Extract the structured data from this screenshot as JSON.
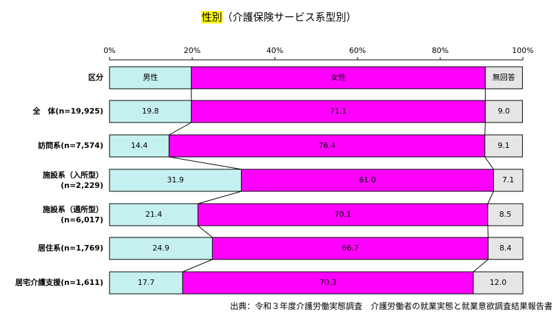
{
  "title_main": "性別",
  "title_sub": "（介護保険サービス系型別）",
  "source": "出典：令和３年度介護労働実態調査　介護労働者の就業実態と就業意欲調査結果報告書",
  "chart_data": {
    "type": "bar",
    "orientation": "horizontal",
    "stacked": true,
    "xlim": [
      0,
      100
    ],
    "x_ticks": [
      "0%",
      "20%",
      "40%",
      "60%",
      "80%",
      "100%"
    ],
    "grid": false,
    "legend_row": {
      "label": "区分",
      "entries": [
        "男性",
        "女性",
        "無回答"
      ]
    },
    "categories": [
      [
        "全　体(n=19,925)"
      ],
      [
        "訪問系(n=7,574)"
      ],
      [
        "施設系（入所型）",
        "(n=2,229)"
      ],
      [
        "施設系（通所型）",
        "(n=6,017)"
      ],
      [
        "居住系(n=1,769)"
      ],
      [
        "居宅介護支援(n=1,611)"
      ]
    ],
    "series": [
      {
        "name": "男性",
        "color": "#c5f0f0",
        "values": [
          19.8,
          14.4,
          31.9,
          21.4,
          24.9,
          17.7
        ]
      },
      {
        "name": "女性",
        "color": "#ff00ff",
        "values": [
          71.1,
          76.4,
          61.0,
          70.1,
          66.7,
          70.3
        ]
      },
      {
        "name": "無回答",
        "color": "#e6e6e6",
        "values": [
          9.0,
          9.1,
          7.1,
          8.5,
          8.4,
          12.0
        ]
      }
    ],
    "data_labels": [
      [
        "19.8",
        "71.1",
        "9.0"
      ],
      [
        "14.4",
        "76.4",
        "9.1"
      ],
      [
        "31.9",
        "61.0",
        "7.1"
      ],
      [
        "21.4",
        "70.1",
        "8.5"
      ],
      [
        "24.9",
        "66.7",
        "8.4"
      ],
      [
        "17.7",
        "70.3",
        "12.0"
      ]
    ],
    "connector_lines": true
  }
}
